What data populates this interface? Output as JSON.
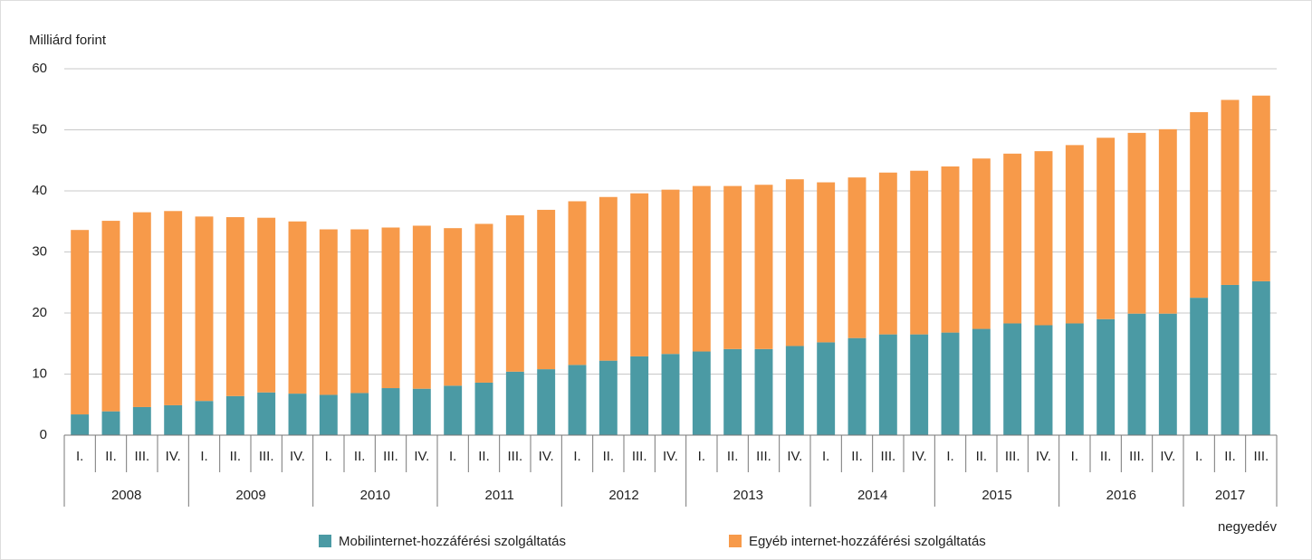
{
  "chart_data": {
    "type": "stacked_bar",
    "y_axis_label": "Milliárd forint",
    "x_axis_label": "negyedév",
    "categories": [
      "I.",
      "II.",
      "III.",
      "IV.",
      "I.",
      "II.",
      "III.",
      "IV.",
      "I.",
      "II.",
      "III.",
      "IV.",
      "I.",
      "II.",
      "III.",
      "IV.",
      "I.",
      "II.",
      "III.",
      "IV.",
      "I.",
      "II.",
      "III.",
      "IV.",
      "I.",
      "II.",
      "III.",
      "IV.",
      "I.",
      "II.",
      "III.",
      "IV.",
      "I.",
      "II.",
      "III.",
      "IV.",
      "I.",
      "II.",
      "III."
    ],
    "category_groups": [
      "2008",
      "2009",
      "2010",
      "2011",
      "2012",
      "2013",
      "2014",
      "2015",
      "2016",
      "2017"
    ],
    "series": [
      {
        "name": "Mobilinternet-hozzáférési szolgáltatás",
        "color": "#4b9aa4",
        "values": [
          3.4,
          3.9,
          4.6,
          4.9,
          5.6,
          6.4,
          7.0,
          6.8,
          6.6,
          6.9,
          7.7,
          7.6,
          8.1,
          8.6,
          10.4,
          10.8,
          11.5,
          12.2,
          12.9,
          13.3,
          13.7,
          14.1,
          14.1,
          14.6,
          15.2,
          15.9,
          16.5,
          16.5,
          16.8,
          17.4,
          18.3,
          18.0,
          18.3,
          19.0,
          19.9,
          19.9,
          22.5,
          24.6,
          25.2
        ]
      },
      {
        "name": "Egyéb internet-hozzáférési szolgáltatás",
        "color": "#f79a4a",
        "values": [
          30.2,
          31.2,
          31.9,
          31.8,
          30.2,
          29.3,
          28.6,
          28.2,
          27.1,
          26.8,
          26.3,
          26.7,
          25.8,
          26.0,
          25.6,
          26.1,
          26.8,
          26.8,
          26.7,
          26.9,
          27.1,
          26.7,
          26.9,
          27.3,
          26.2,
          26.3,
          26.5,
          26.8,
          27.2,
          27.9,
          27.8,
          28.5,
          29.2,
          29.7,
          29.6,
          30.2,
          30.4,
          30.3,
          30.4
        ]
      }
    ],
    "ylim": [
      0,
      60
    ],
    "yticks": [
      0,
      10,
      20,
      30,
      40,
      50,
      60
    ],
    "grid": true
  }
}
